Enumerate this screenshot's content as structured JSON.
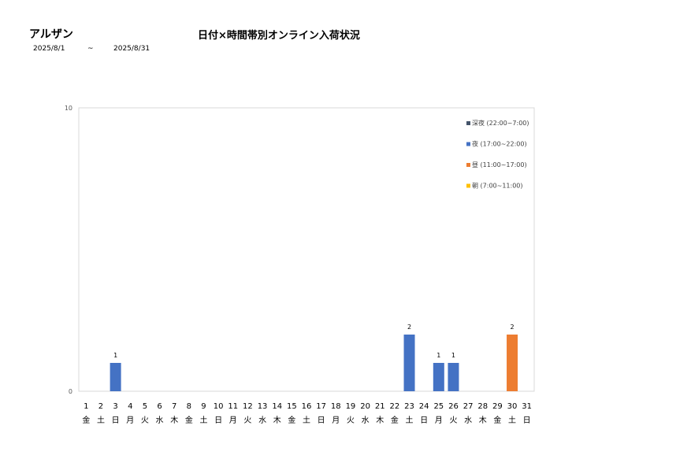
{
  "header": {
    "store_name": "アルザン",
    "title": "日付×時間帯別オンライン入荷状況",
    "date_from": "2025/8/1",
    "date_sep": "~",
    "date_to": "2025/8/31"
  },
  "chart_data": {
    "type": "bar",
    "stacked": true,
    "ylim": [
      0,
      10
    ],
    "y_ticks": [
      "0",
      "10"
    ],
    "grid": false,
    "legend_position": "top-right",
    "categories": [
      "1",
      "2",
      "3",
      "4",
      "5",
      "6",
      "7",
      "8",
      "9",
      "10",
      "11",
      "12",
      "13",
      "14",
      "15",
      "16",
      "17",
      "18",
      "19",
      "20",
      "21",
      "22",
      "23",
      "24",
      "25",
      "26",
      "27",
      "28",
      "29",
      "30",
      "31"
    ],
    "weekdays": [
      "金",
      "土",
      "日",
      "月",
      "火",
      "水",
      "木",
      "金",
      "土",
      "日",
      "月",
      "火",
      "水",
      "木",
      "金",
      "土",
      "日",
      "月",
      "火",
      "水",
      "木",
      "金",
      "土",
      "日",
      "月",
      "火",
      "水",
      "木",
      "金",
      "土",
      "日"
    ],
    "series": [
      {
        "name": "深夜 (22:00~7:00)",
        "color": "#44546a",
        "values": [
          0,
          0,
          0,
          0,
          0,
          0,
          0,
          0,
          0,
          0,
          0,
          0,
          0,
          0,
          0,
          0,
          0,
          0,
          0,
          0,
          0,
          0,
          0,
          0,
          0,
          0,
          0,
          0,
          0,
          0,
          0
        ]
      },
      {
        "name": "夜 (17:00~22:00)",
        "color": "#4472c4",
        "values": [
          0,
          0,
          1,
          0,
          0,
          0,
          0,
          0,
          0,
          0,
          0,
          0,
          0,
          0,
          0,
          0,
          0,
          0,
          0,
          0,
          0,
          0,
          2,
          0,
          1,
          1,
          0,
          0,
          0,
          0,
          0
        ]
      },
      {
        "name": "昼 (11:00~17:00)",
        "color": "#ed7d31",
        "values": [
          0,
          0,
          0,
          0,
          0,
          0,
          0,
          0,
          0,
          0,
          0,
          0,
          0,
          0,
          0,
          0,
          0,
          0,
          0,
          0,
          0,
          0,
          0,
          0,
          0,
          0,
          0,
          0,
          0,
          2,
          0
        ]
      },
      {
        "name": "朝 (7:00~11:00)",
        "color": "#ffc000",
        "values": [
          0,
          0,
          0,
          0,
          0,
          0,
          0,
          0,
          0,
          0,
          0,
          0,
          0,
          0,
          0,
          0,
          0,
          0,
          0,
          0,
          0,
          0,
          0,
          0,
          0,
          0,
          0,
          0,
          0,
          0,
          0
        ]
      }
    ]
  }
}
